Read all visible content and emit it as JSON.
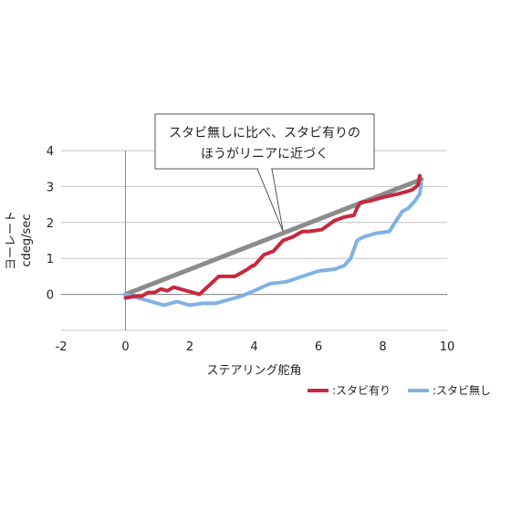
{
  "chart_data": {
    "type": "line",
    "xlabel": "ステアリング舵角",
    "ylabel_lines": [
      "ヨーレート",
      "cdeg/sec"
    ],
    "xlim": [
      -2,
      10
    ],
    "ylim": [
      -1,
      4
    ],
    "x_ticks": [
      "-2",
      "0",
      "2",
      "4",
      "6",
      "8",
      "10"
    ],
    "y_ticks": [
      "0",
      "1",
      "2",
      "3",
      "4"
    ],
    "grid": "horizontal",
    "annotation": {
      "lines": [
        "スタビ無しに比べ、スタビ有りの",
        "ほうがリニアに近づく"
      ],
      "target": {
        "x": 4.9,
        "y": 1.75
      }
    },
    "reference_line": {
      "x": [
        0,
        9.2
      ],
      "y": [
        0,
        3.2
      ],
      "color": "#8c8c8c"
    },
    "series": [
      {
        "name": ":スタビ有り",
        "color": "#c8283e",
        "x": [
          0,
          0.3,
          0.5,
          0.7,
          0.9,
          1.1,
          1.3,
          1.5,
          1.7,
          1.9,
          2.1,
          2.3,
          2.6,
          2.9,
          3.2,
          3.4,
          3.6,
          3.8,
          3.95,
          4.0,
          4.3,
          4.6,
          4.9,
          5.2,
          5.5,
          5.7,
          6.1,
          6.5,
          6.8,
          7.1,
          7.2,
          7.3,
          7.6,
          8.0,
          8.5,
          8.9,
          9.05,
          9.1,
          9.15
        ],
        "y": [
          -0.1,
          -0.05,
          -0.05,
          0.05,
          0.05,
          0.15,
          0.1,
          0.2,
          0.15,
          0.1,
          0.05,
          0.0,
          0.25,
          0.5,
          0.5,
          0.5,
          0.6,
          0.7,
          0.8,
          0.8,
          1.1,
          1.2,
          1.5,
          1.6,
          1.75,
          1.75,
          1.8,
          2.05,
          2.15,
          2.2,
          2.4,
          2.55,
          2.6,
          2.7,
          2.8,
          2.9,
          3.0,
          3.05,
          3.3
        ]
      },
      {
        "name": ":スタビ無し",
        "color": "#7fb2e3",
        "x": [
          0,
          0.4,
          0.8,
          1.2,
          1.6,
          2.0,
          2.4,
          2.8,
          3.2,
          3.6,
          4.0,
          4.5,
          5.0,
          5.5,
          6.0,
          6.5,
          6.8,
          7.0,
          7.2,
          7.4,
          7.8,
          8.2,
          8.6,
          8.8,
          9.0,
          9.15,
          9.2
        ],
        "y": [
          0,
          -0.1,
          -0.2,
          -0.3,
          -0.2,
          -0.3,
          -0.25,
          -0.25,
          -0.15,
          -0.05,
          0.1,
          0.3,
          0.35,
          0.5,
          0.65,
          0.7,
          0.8,
          1.0,
          1.5,
          1.6,
          1.7,
          1.75,
          2.3,
          2.4,
          2.6,
          2.8,
          3.1
        ]
      }
    ]
  }
}
